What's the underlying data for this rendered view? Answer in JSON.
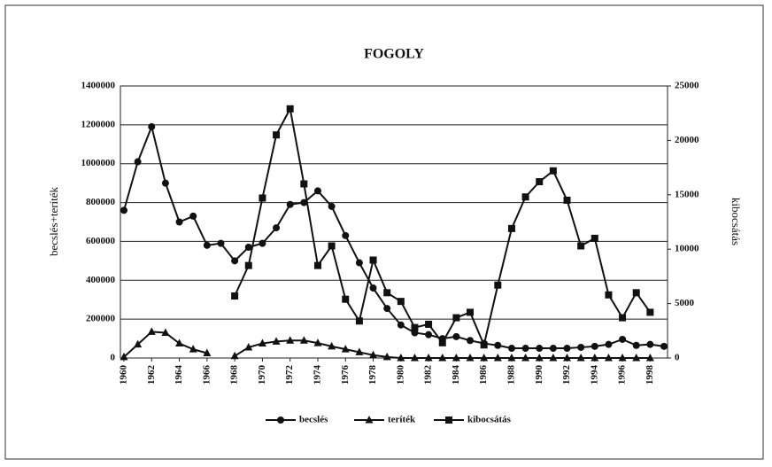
{
  "chart_data": {
    "type": "line",
    "title": "FOGOLY",
    "ylabel": "becslés+teríték",
    "y2label": "kibocsátás",
    "x": [
      1960,
      1961,
      1962,
      1963,
      1964,
      1965,
      1966,
      1967,
      1968,
      1969,
      1970,
      1971,
      1972,
      1973,
      1974,
      1975,
      1976,
      1977,
      1978,
      1979,
      1980,
      1981,
      1982,
      1983,
      1984,
      1985,
      1986,
      1987,
      1988,
      1989,
      1990,
      1991,
      1992,
      1993,
      1994,
      1995,
      1996,
      1997,
      1998,
      1999
    ],
    "xlim": [
      1960,
      1999
    ],
    "xticks": [
      1960,
      1962,
      1964,
      1966,
      1968,
      1970,
      1972,
      1974,
      1976,
      1978,
      1980,
      1982,
      1984,
      1986,
      1988,
      1990,
      1992,
      1994,
      1996,
      1998
    ],
    "ylim": [
      0,
      1400000
    ],
    "yticks": [
      0,
      200000,
      400000,
      600000,
      800000,
      1000000,
      1200000,
      1400000
    ],
    "y2lim": [
      0,
      25000
    ],
    "y2ticks": [
      0,
      5000,
      10000,
      15000,
      20000,
      25000
    ],
    "grid": true,
    "legend": "bottom",
    "series": [
      {
        "name": "becslés",
        "color": "#111111",
        "marker": "circle",
        "values": [
          760000,
          1010000,
          1190000,
          900000,
          700000,
          730000,
          580000,
          590000,
          500000,
          570000,
          590000,
          670000,
          790000,
          800000,
          860000,
          780000,
          630000,
          490000,
          360000,
          255000,
          170000,
          130000,
          120000,
          100000,
          110000,
          90000,
          75000,
          65000,
          50000,
          50000,
          50000,
          50000,
          50000,
          55000,
          60000,
          70000,
          96000,
          65000,
          70000,
          60000
        ]
      },
      {
        "name": "teríték",
        "color": "#111111",
        "marker": "triangle",
        "values": [
          5000,
          70000,
          135000,
          130000,
          75000,
          45000,
          25000,
          null,
          10000,
          55000,
          75000,
          85000,
          90000,
          90000,
          77000,
          60000,
          45000,
          30000,
          15000,
          5000,
          0,
          0,
          0,
          0,
          0,
          0,
          0,
          0,
          0,
          0,
          0,
          0,
          0,
          0,
          0,
          0,
          0,
          0,
          0,
          null
        ]
      },
      {
        "name": "kibocsátás",
        "color": "#111111",
        "marker": "square",
        "axis": "y2",
        "values": [
          null,
          null,
          null,
          null,
          null,
          null,
          null,
          null,
          5700,
          8500,
          14700,
          20500,
          22900,
          16000,
          8500,
          10300,
          5400,
          3400,
          9000,
          6000,
          5200,
          2800,
          3100,
          1400,
          3700,
          4200,
          1200,
          6700,
          11900,
          14800,
          16200,
          17200,
          14500,
          10300,
          11000,
          5800,
          3700,
          6000,
          4200,
          null
        ]
      }
    ]
  }
}
